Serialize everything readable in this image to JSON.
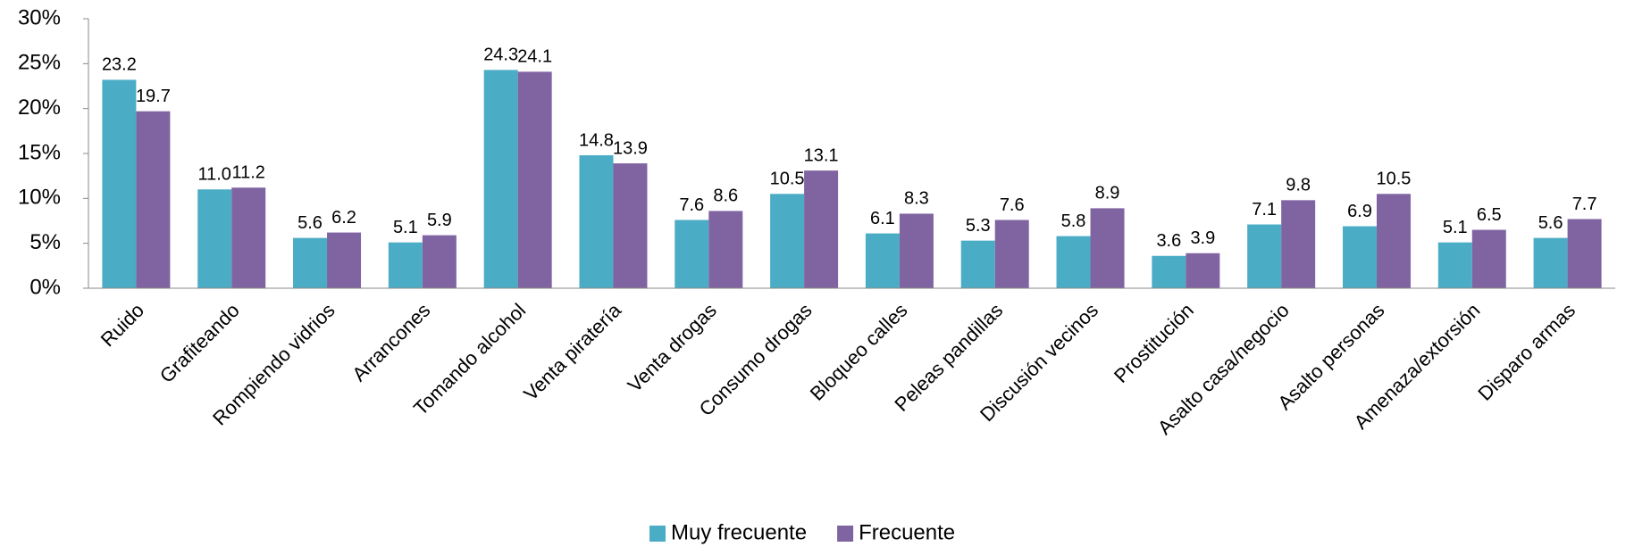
{
  "chart_data": {
    "type": "bar",
    "categories": [
      "Ruido",
      "Grafiteando",
      "Rompiendo vidrios",
      "Arrancones",
      "Tomando alcohol",
      "Venta piratería",
      "Venta drogas",
      "Consumo drogas",
      "Bloqueo calles",
      "Peleas pandillas",
      "Discusión vecinos",
      "Prostitución",
      "Asalto casa/negocio",
      "Asalto personas",
      "Amenaza/extorsión",
      "Disparo armas"
    ],
    "series": [
      {
        "name": "Muy frecuente",
        "color": "#4bacc6",
        "values": [
          23.2,
          11.0,
          5.6,
          5.1,
          24.3,
          14.8,
          7.6,
          10.5,
          6.1,
          5.3,
          5.8,
          3.6,
          7.1,
          6.9,
          5.1,
          5.6
        ],
        "value_labels": [
          "23.2",
          "11.0",
          "5.6",
          "5.1",
          "24.3",
          "14.8",
          "7.6",
          "10.5",
          "6.1",
          "5.3",
          "5.8",
          "3.6",
          "7.1",
          "6.9",
          "5.1",
          "5.6"
        ]
      },
      {
        "name": "Frecuente",
        "color": "#8064a2",
        "values": [
          19.7,
          11.2,
          6.2,
          5.9,
          24.1,
          13.9,
          8.6,
          13.1,
          8.3,
          7.6,
          8.9,
          3.9,
          9.8,
          10.5,
          6.5,
          7.7
        ],
        "value_labels": [
          "19.7",
          "11.2",
          "6.2",
          "5.9",
          "24.1",
          "13.9",
          "8.6",
          "13.1",
          "8.3",
          "7.6",
          "8.9",
          "3.9",
          "9.8",
          "10.5",
          "6.5",
          "7.7"
        ]
      }
    ],
    "ylim": [
      0,
      30
    ],
    "yticks": [
      {
        "value": 0,
        "label": "0%"
      },
      {
        "value": 5,
        "label": "5%"
      },
      {
        "value": 10,
        "label": "10%"
      },
      {
        "value": 15,
        "label": "15%"
      },
      {
        "value": 20,
        "label": "20%"
      },
      {
        "value": 25,
        "label": "25%"
      },
      {
        "value": 30,
        "label": "30%"
      }
    ],
    "legend": "bottom"
  }
}
